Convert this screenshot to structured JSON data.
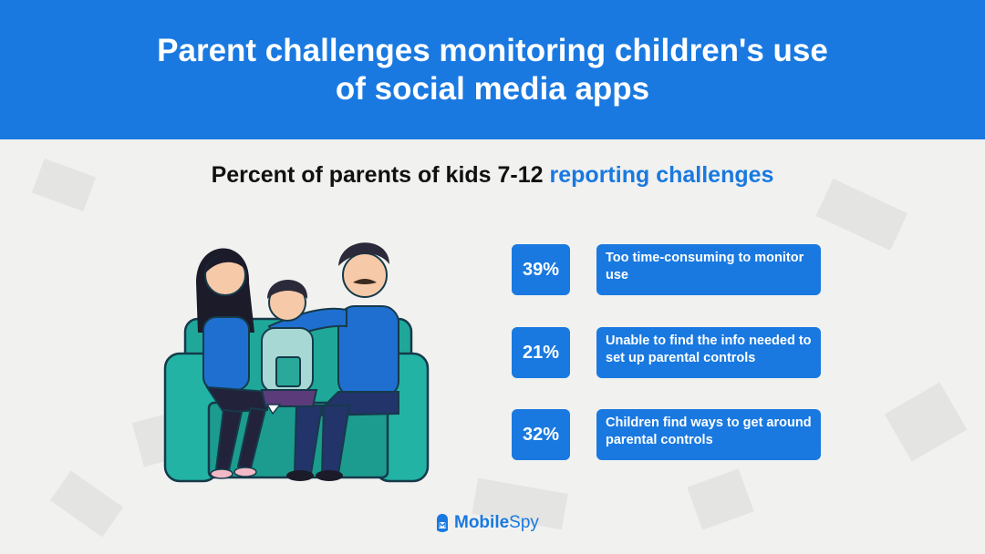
{
  "header": {
    "title": "Parent challenges monitoring children's use of social media apps"
  },
  "subtitle": {
    "prefix": "Percent of parents of kids 7-12",
    "accent": "reporting challenges"
  },
  "stats": [
    {
      "percent": "39%",
      "label": "Too time-consuming to monitor use"
    },
    {
      "percent": "21%",
      "label": "Unable to find the info needed to set up parental controls"
    },
    {
      "percent": "32%",
      "label": "Children find ways to get around parental controls"
    }
  ],
  "logo": {
    "part1": "Mobile",
    "part2": "Spy",
    "icon": "shield-m-icon"
  },
  "colors": {
    "accent": "#1979e0",
    "background": "#f1f1f0",
    "sofa": "#1fa89a"
  }
}
